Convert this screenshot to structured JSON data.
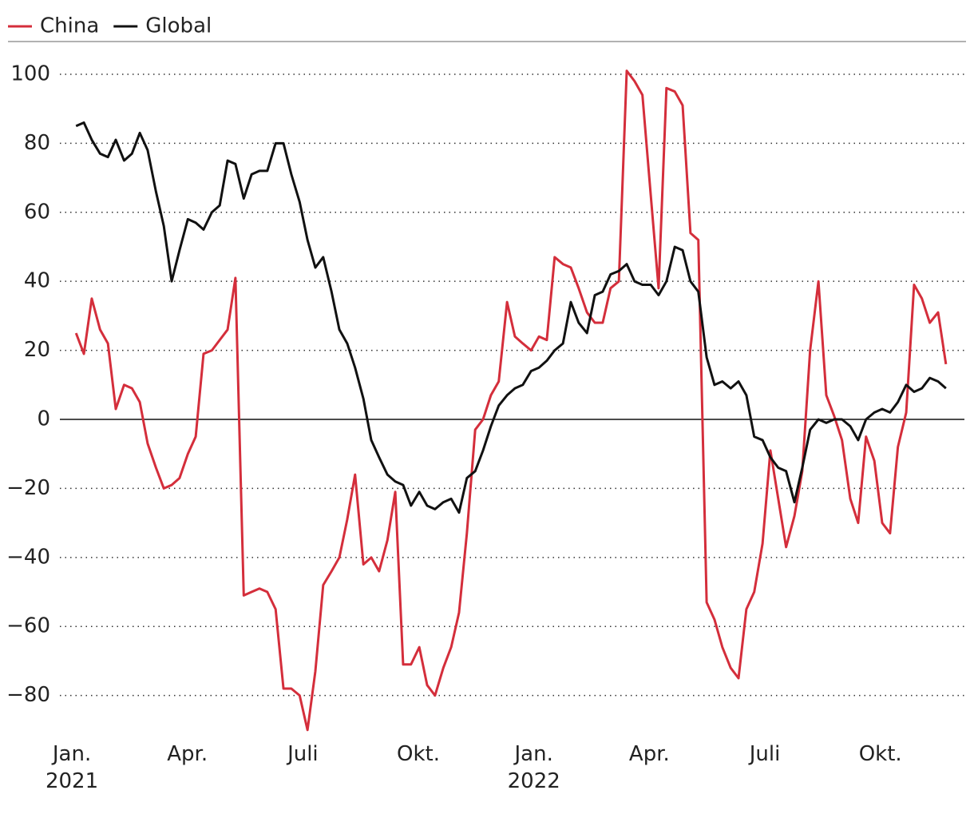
{
  "chart_data": {
    "type": "line",
    "x": [
      2021.009,
      2021.026,
      2021.043,
      2021.061,
      2021.078,
      2021.095,
      2021.113,
      2021.13,
      2021.147,
      2021.164,
      2021.182,
      2021.199,
      2021.216,
      2021.233,
      2021.251,
      2021.268,
      2021.285,
      2021.303,
      2021.32,
      2021.337,
      2021.354,
      2021.372,
      2021.389,
      2021.406,
      2021.423,
      2021.441,
      2021.458,
      2021.475,
      2021.493,
      2021.51,
      2021.527,
      2021.544,
      2021.562,
      2021.579,
      2021.596,
      2021.613,
      2021.631,
      2021.648,
      2021.665,
      2021.683,
      2021.7,
      2021.717,
      2021.734,
      2021.752,
      2021.769,
      2021.786,
      2021.804,
      2021.821,
      2021.838,
      2021.855,
      2021.873,
      2021.89,
      2021.907,
      2021.924,
      2021.942,
      2021.959,
      2021.976,
      2021.994,
      2022.011,
      2022.028,
      2022.045,
      2022.063,
      2022.08,
      2022.097,
      2022.115,
      2022.132,
      2022.149,
      2022.166,
      2022.184,
      2022.201,
      2022.218,
      2022.235,
      2022.253,
      2022.27,
      2022.287,
      2022.305,
      2022.322,
      2022.339,
      2022.356,
      2022.374,
      2022.391,
      2022.408,
      2022.426,
      2022.443,
      2022.46,
      2022.477,
      2022.495,
      2022.512,
      2022.529,
      2022.546,
      2022.564,
      2022.581,
      2022.598,
      2022.616,
      2022.633,
      2022.65,
      2022.667,
      2022.685,
      2022.702,
      2022.719,
      2022.737,
      2022.754,
      2022.771,
      2022.788,
      2022.806,
      2022.823,
      2022.84,
      2022.857,
      2022.875,
      2022.892
    ],
    "series": [
      {
        "name": "China",
        "color": "#d42e3b",
        "values": [
          25,
          19,
          35,
          26,
          22,
          3,
          10,
          9,
          5,
          -7,
          -14,
          -20,
          -19,
          -17,
          -10,
          -5,
          19,
          20,
          23,
          26,
          41,
          -51,
          -50,
          -49,
          -50,
          -55,
          -78,
          -78,
          -80,
          -90,
          -73,
          -48,
          -44,
          -40,
          -29,
          -16,
          -42,
          -40,
          -44,
          -35,
          -21,
          -71,
          -71,
          -66,
          -77,
          -80,
          -72,
          -66,
          -56,
          -33,
          -3,
          0,
          7,
          11,
          34,
          24,
          22,
          20,
          24,
          23,
          47,
          45,
          44,
          38,
          31,
          28,
          28,
          38,
          40,
          101,
          98,
          94,
          65,
          38,
          96,
          95,
          91,
          54,
          52,
          -53,
          -58,
          -66,
          -72,
          -75,
          -55,
          -50,
          -36,
          -9,
          -23,
          -37,
          -28,
          -15,
          20,
          40,
          7,
          1,
          -6,
          -23,
          -30,
          -5,
          -12,
          -30,
          -33,
          -8,
          2,
          39,
          35,
          28,
          31,
          16
        ]
      },
      {
        "name": "Global",
        "color": "#111111",
        "values": [
          85,
          86,
          81,
          77,
          76,
          81,
          75,
          77,
          83,
          78,
          66,
          56,
          40,
          49,
          58,
          57,
          55,
          60,
          62,
          75,
          74,
          64,
          71,
          72,
          72,
          80,
          80,
          71,
          63,
          52,
          44,
          47,
          37,
          26,
          22,
          15,
          6,
          -6,
          -11,
          -16,
          -18,
          -19,
          -25,
          -21,
          -25,
          -26,
          -24,
          -23,
          -27,
          -17,
          -15,
          -9,
          -2,
          4,
          7,
          9,
          10,
          14,
          15,
          17,
          20,
          22,
          34,
          28,
          25,
          36,
          37,
          42,
          43,
          45,
          40,
          39,
          39,
          36,
          40,
          50,
          49,
          40,
          37,
          18,
          10,
          11,
          9,
          11,
          7,
          -5,
          -6,
          -11,
          -14,
          -15,
          -24,
          -14,
          -3,
          0,
          -1,
          0,
          0,
          -2,
          -6,
          0,
          2,
          3,
          2,
          5,
          10,
          8,
          9,
          12,
          11,
          9
        ]
      }
    ],
    "xlim": [
      2020.974,
      2022.932
    ],
    "xticks": [
      {
        "value": 2021,
        "label": "Jan.\n2021"
      },
      {
        "value": 2021.25,
        "label": "Apr."
      },
      {
        "value": 2021.5,
        "label": "Juli"
      },
      {
        "value": 2021.75,
        "label": "Okt."
      },
      {
        "value": 2022,
        "label": "Jan.\n2022"
      },
      {
        "value": 2022.25,
        "label": "Apr."
      },
      {
        "value": 2022.5,
        "label": "Juli"
      },
      {
        "value": 2022.75,
        "label": "Okt."
      }
    ],
    "ylim": [
      -93,
      108
    ],
    "yticks": [
      {
        "value": -80,
        "label": "−80"
      },
      {
        "value": -60,
        "label": "−60"
      },
      {
        "value": -40,
        "label": "−40"
      },
      {
        "value": -20,
        "label": "−20"
      },
      0,
      20,
      40,
      60,
      80,
      100
    ],
    "grid": true,
    "zero_line": true,
    "legend": "top-left"
  }
}
